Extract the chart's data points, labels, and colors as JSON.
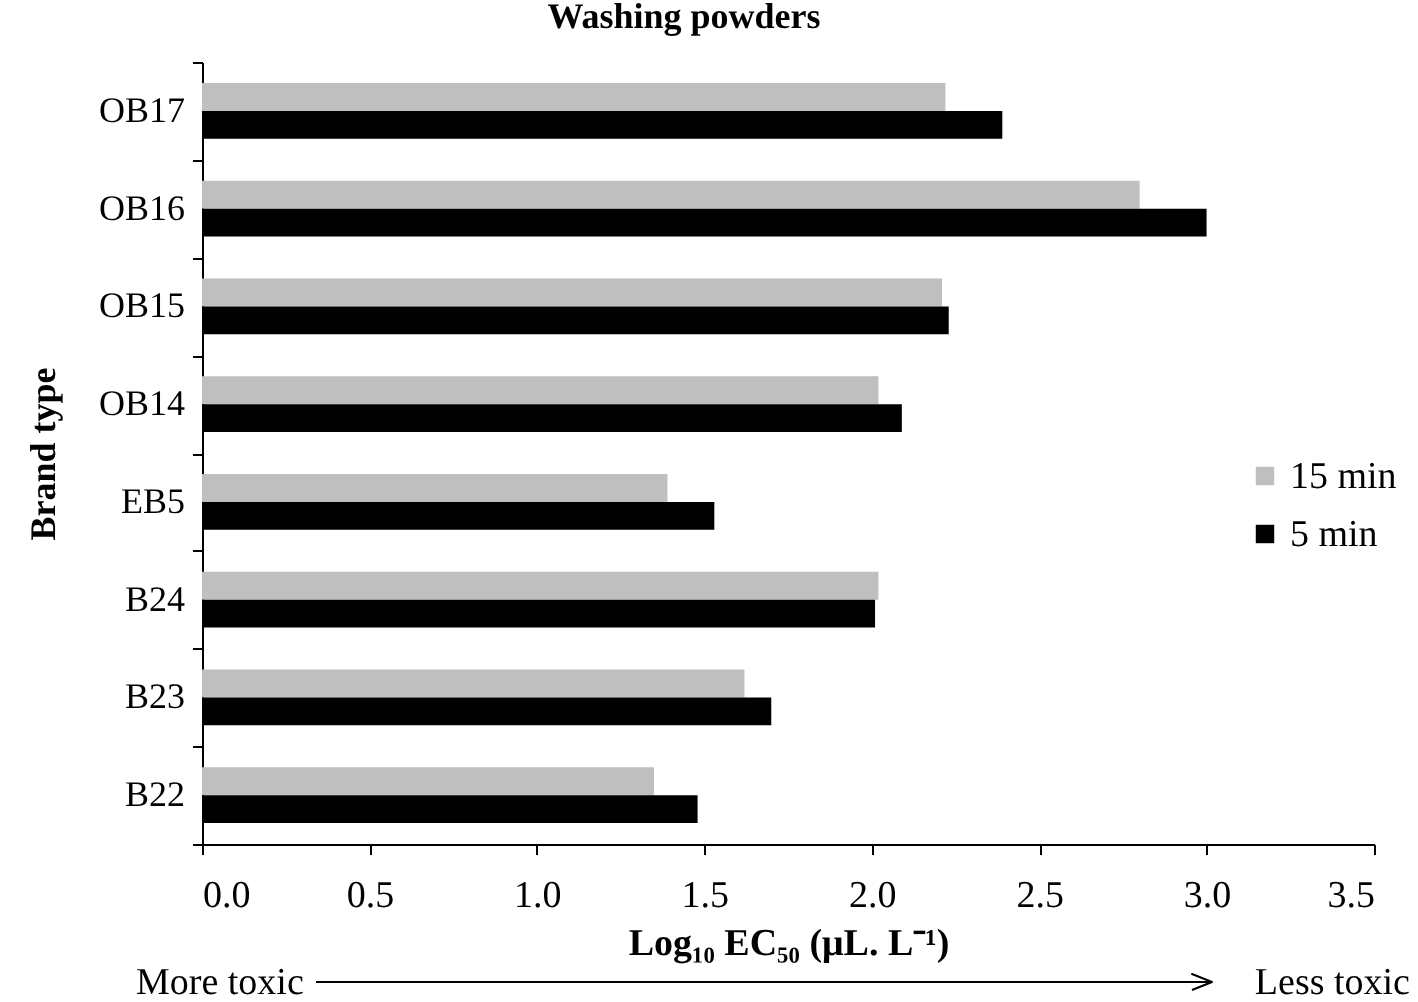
{
  "chart_data": {
    "type": "bar",
    "orientation": "horizontal",
    "title": "Washing powders",
    "xlabel": "Log₁₀ EC₅₀ (μL. L⁻¹)",
    "ylabel": "Brand type",
    "categories": [
      "OB17",
      "OB16",
      "OB15",
      "OB14",
      "EB5",
      "B24",
      "B23",
      "B22"
    ],
    "series": [
      {
        "name": "15 min",
        "color": "#bfbfbf",
        "values": [
          2.22,
          2.8,
          2.21,
          2.02,
          1.39,
          2.02,
          1.62,
          1.35
        ]
      },
      {
        "name": "5 min",
        "color": "#000000",
        "values": [
          2.39,
          3.0,
          2.23,
          2.09,
          1.53,
          2.01,
          1.7,
          1.48
        ]
      }
    ],
    "xlim": [
      0,
      3.5
    ],
    "xticks": [
      {
        "value": 0,
        "label": "0.0"
      },
      0.5,
      {
        "value": 1,
        "label": "1.0"
      },
      1.5,
      {
        "value": 2,
        "label": "2.0"
      },
      2.5,
      {
        "value": 3,
        "label": "3.0"
      },
      3.5
    ],
    "legend": "right",
    "annotations": [
      "More toxic",
      "Less toxic"
    ]
  }
}
